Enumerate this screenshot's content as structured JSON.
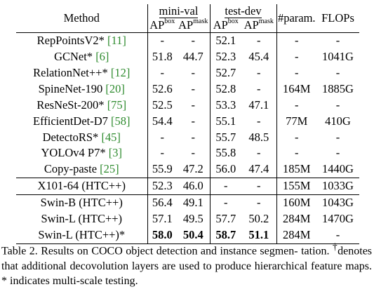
{
  "header": {
    "method": "Method",
    "minival": "mini-val",
    "testdev": "test-dev",
    "ap": "AP",
    "box": "box",
    "mask": "mask",
    "param": "#param.",
    "flops": "FLOPs"
  },
  "rows": [
    {
      "name": "RepPointsV2*",
      "cite": "[11]",
      "mv_box": "-",
      "mv_mask": "-",
      "td_box": "52.1",
      "td_mask": "-",
      "param": "-",
      "flops": "-"
    },
    {
      "name": "GCNet*",
      "cite": "[6]",
      "mv_box": "51.8",
      "mv_mask": "44.7",
      "td_box": "52.3",
      "td_mask": "45.4",
      "param": "-",
      "flops": "1041G"
    },
    {
      "name": "RelationNet++*",
      "cite": "[12]",
      "mv_box": "-",
      "mv_mask": "-",
      "td_box": "52.7",
      "td_mask": "-",
      "param": "-",
      "flops": "-"
    },
    {
      "name": "SpineNet-190",
      "cite": "[20]",
      "mv_box": "52.6",
      "mv_mask": "-",
      "td_box": "52.8",
      "td_mask": "-",
      "param": "164M",
      "flops": "1885G"
    },
    {
      "name": "ResNeSt-200*",
      "cite": "[75]",
      "mv_box": "52.5",
      "mv_mask": "-",
      "td_box": "53.3",
      "td_mask": "47.1",
      "param": "-",
      "flops": "-"
    },
    {
      "name": "EfficientDet-D7",
      "cite": "[58]",
      "mv_box": "54.4",
      "mv_mask": "-",
      "td_box": "55.1",
      "td_mask": "-",
      "param": "77M",
      "flops": "410G"
    },
    {
      "name": "DetectoRS*",
      "cite": "[45]",
      "mv_box": "-",
      "mv_mask": "-",
      "td_box": "55.7",
      "td_mask": "48.5",
      "param": "-",
      "flops": "-"
    },
    {
      "name": "YOLOv4 P7*",
      "cite": "[3]",
      "mv_box": "-",
      "mv_mask": "-",
      "td_box": "55.8",
      "td_mask": "-",
      "param": "-",
      "flops": "-"
    },
    {
      "name": "Copy-paste",
      "cite": "[25]",
      "mv_box": "55.9",
      "mv_mask": "47.2",
      "td_box": "56.0",
      "td_mask": "47.4",
      "param": "185M",
      "flops": "1440G"
    },
    {
      "name": "X101-64 (HTC++)",
      "cite": "",
      "mv_box": "52.3",
      "mv_mask": "46.0",
      "td_box": "-",
      "td_mask": "-",
      "param": "155M",
      "flops": "1033G"
    },
    {
      "name": "Swin-B (HTC++)",
      "cite": "",
      "mv_box": "56.4",
      "mv_mask": "49.1",
      "td_box": "-",
      "td_mask": "-",
      "param": "160M",
      "flops": "1043G"
    },
    {
      "name": "Swin-L (HTC++)",
      "cite": "",
      "mv_box": "57.1",
      "mv_mask": "49.5",
      "td_box": "57.7",
      "td_mask": "50.2",
      "param": "284M",
      "flops": "1470G"
    },
    {
      "name": "Swin-L (HTC++)*",
      "cite": "",
      "mv_box": "58.0",
      "mv_mask": "50.4",
      "td_box": "58.7",
      "td_mask": "51.1",
      "param": "284M",
      "flops": "-"
    }
  ],
  "caption": {
    "line1": "Table 2. Results on COCO object detection and instance segmen-",
    "line2_pre": "tation. ",
    "dagger": "†",
    "line2_post": "denotes that additional decovolution layers are used to",
    "line3": "produce hierarchical feature maps. * indicates multi-scale testing."
  }
}
